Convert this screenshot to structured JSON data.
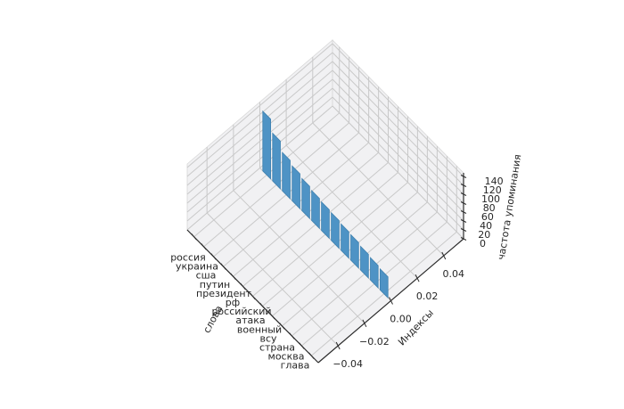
{
  "chart_data": {
    "type": "bar",
    "projection": "3d",
    "title": "",
    "categories": [
      "россия",
      "украина",
      "сша",
      "путин",
      "президент",
      "рф",
      "российский",
      "атака",
      "военный",
      "всу",
      "страна",
      "москва",
      "глава"
    ],
    "values": [
      134,
      107,
      86,
      78,
      72,
      67,
      64,
      62,
      59,
      57,
      53,
      50,
      47
    ],
    "xlabel": "Индексы",
    "ylabel": "слова",
    "zlabel": "частота упоминания",
    "x_ticks": [
      "−0.04",
      "−0.02",
      "0.00",
      "0.02",
      "0.04"
    ],
    "x_tick_values": [
      -0.04,
      -0.02,
      0.0,
      0.02,
      0.04
    ],
    "z_ticks": [
      "0",
      "20",
      "40",
      "60",
      "80",
      "100",
      "120",
      "140"
    ],
    "z_tick_values": [
      0,
      20,
      40,
      60,
      80,
      100,
      120,
      140
    ],
    "xlim": [
      -0.055,
      0.055
    ],
    "zlim": [
      0,
      148
    ],
    "bars_at_x": 0.0,
    "grid": true,
    "legend": null,
    "colors": {
      "bar_fill": "#4e93c5",
      "bar_edge": "#3e81b0",
      "pane": "#f1f1f3",
      "pane_edge": "#d8d8d8",
      "grid_line": "#c9c9c9",
      "axis_line": "#2b2b2b",
      "text": "#262626",
      "background": "#ffffff"
    }
  }
}
